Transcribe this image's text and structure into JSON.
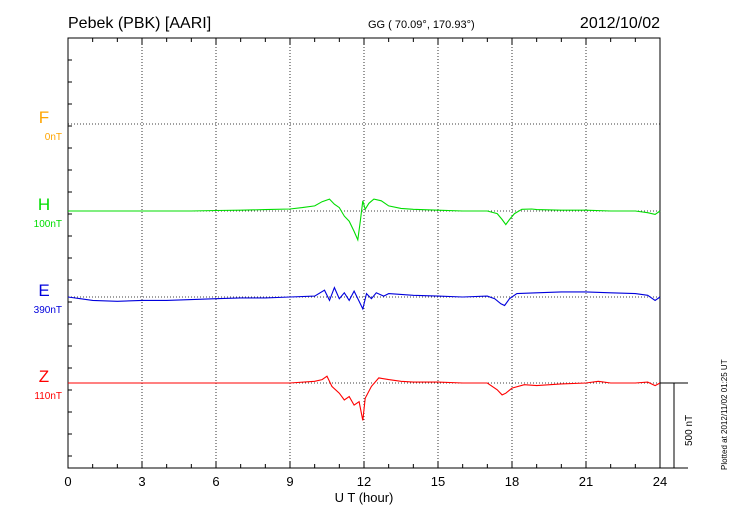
{
  "header": {
    "station": "Pebek (PBK)  [AARI]",
    "coords": "GG ( 70.09°, 170.93°)",
    "date": "2012/10/02"
  },
  "footer": {
    "plotted": "Plotted at 2012/11/02 01:25 UT"
  },
  "chart_data": {
    "type": "line",
    "xlabel": "U T (hour)",
    "xlim": [
      0,
      24
    ],
    "xticks": [
      0,
      3,
      6,
      9,
      12,
      15,
      18,
      21,
      24
    ],
    "scale_bar": {
      "label": "500 nT",
      "value_nT": 500
    },
    "grid": true,
    "series": [
      {
        "name": "F",
        "offset_label": "0nT",
        "color": "#ffa500",
        "x": [],
        "y": []
      },
      {
        "name": "H",
        "offset_label": "100nT",
        "color": "#00dd00",
        "x": [
          0,
          1,
          2,
          3,
          4,
          5,
          6,
          7,
          8,
          9,
          9.5,
          10,
          10.3,
          10.6,
          10.8,
          11,
          11.2,
          11.4,
          11.6,
          11.75,
          11.85,
          11.95,
          12.05,
          12.2,
          12.4,
          12.7,
          13,
          13.5,
          14,
          15,
          16,
          17,
          17.4,
          17.6,
          17.75,
          17.9,
          18.1,
          18.4,
          18.8,
          19,
          20,
          21,
          22,
          23,
          23.5,
          23.8,
          24
        ],
        "y": [
          0,
          0,
          0,
          0,
          0,
          0,
          3,
          5,
          8,
          12,
          20,
          30,
          55,
          70,
          40,
          20,
          -30,
          -60,
          -120,
          -170,
          -60,
          60,
          10,
          45,
          70,
          60,
          30,
          15,
          10,
          5,
          0,
          0,
          -15,
          -50,
          -80,
          -50,
          -15,
          10,
          12,
          8,
          5,
          5,
          0,
          0,
          -10,
          -20,
          0
        ]
      },
      {
        "name": "E",
        "offset_label": "390nT",
        "color": "#0000dd",
        "x": [
          0,
          0.5,
          1,
          2,
          3,
          4,
          5,
          6,
          7,
          8,
          9,
          10,
          10.4,
          10.6,
          10.8,
          11,
          11.2,
          11.4,
          11.6,
          11.8,
          11.95,
          12.1,
          12.3,
          12.5,
          12.8,
          13,
          14,
          15,
          16,
          17,
          17.3,
          17.55,
          17.7,
          17.9,
          18.2,
          19,
          20,
          21,
          22,
          23,
          23.5,
          23.8,
          24
        ],
        "y": [
          0,
          -10,
          -20,
          -25,
          -20,
          -20,
          -15,
          -10,
          -5,
          -5,
          0,
          5,
          40,
          -20,
          55,
          -10,
          25,
          -20,
          35,
          -25,
          -70,
          20,
          -10,
          25,
          5,
          20,
          10,
          5,
          0,
          5,
          -10,
          -40,
          -50,
          -10,
          20,
          25,
          30,
          30,
          25,
          20,
          10,
          -20,
          0
        ]
      },
      {
        "name": "Z",
        "offset_label": "110nT",
        "color": "#ff0000",
        "x": [
          0,
          1,
          2,
          3,
          4,
          5,
          6,
          7,
          8,
          9,
          10,
          10.3,
          10.5,
          10.7,
          11,
          11.2,
          11.4,
          11.6,
          11.8,
          11.95,
          12.05,
          12.3,
          12.6,
          13,
          13.5,
          14,
          15,
          16,
          17,
          17.4,
          17.6,
          17.75,
          18,
          18.5,
          19,
          20,
          21,
          21.5,
          22,
          23,
          23.5,
          23.8,
          24
        ],
        "y": [
          0,
          0,
          0,
          0,
          0,
          0,
          0,
          0,
          0,
          0,
          10,
          20,
          40,
          -20,
          -60,
          -100,
          -80,
          -130,
          -110,
          -220,
          -90,
          -20,
          30,
          20,
          10,
          5,
          5,
          0,
          0,
          -40,
          -70,
          -60,
          -30,
          -10,
          -15,
          -5,
          0,
          10,
          0,
          0,
          5,
          -15,
          0
        ]
      }
    ]
  }
}
